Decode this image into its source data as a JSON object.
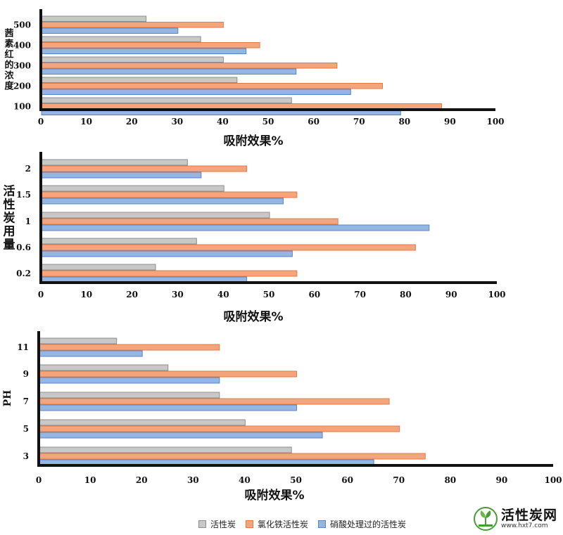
{
  "legend": [
    {
      "label": "活性炭",
      "color": "#c8c8c8"
    },
    {
      "label": "氯化铁活性炭",
      "color": "#f5a57c"
    },
    {
      "label": "硝酸处理过的活性炭",
      "color": "#95b5e2"
    }
  ],
  "colors": {
    "stroke_gray": "#8c8c8c",
    "stroke_orange": "#e07a48",
    "stroke_blue": "#5d84c2"
  },
  "logo": {
    "name": "活性炭网",
    "url": "www.hxt7.com",
    "icon": "tree-leaf-logo"
  },
  "chart_data": [
    {
      "type": "bar",
      "orientation": "horizontal",
      "title": "",
      "ylabel": "茜素红的浓度",
      "xlabel": "吸附效果%",
      "categories": [
        "500",
        "400",
        "300",
        "200",
        "100"
      ],
      "xlim": [
        0,
        100
      ],
      "xticks": [
        "0",
        "10",
        "20",
        "30",
        "40",
        "50",
        "60",
        "70",
        "80",
        "90",
        "100"
      ],
      "series": [
        {
          "name": "活性炭",
          "values": [
            23,
            35,
            40,
            43,
            55
          ]
        },
        {
          "name": "氯化铁活性炭",
          "values": [
            40,
            48,
            65,
            75,
            88
          ]
        },
        {
          "name": "硝酸处理过的活性炭",
          "values": [
            30,
            45,
            56,
            68,
            79
          ]
        }
      ]
    },
    {
      "type": "bar",
      "orientation": "horizontal",
      "title": "",
      "ylabel": "活性炭用量",
      "xlabel": "吸附效果%",
      "categories": [
        "2",
        "1.5",
        "1",
        "0.6",
        "0.2"
      ],
      "xlim": [
        0,
        100
      ],
      "xticks": [
        "0",
        "10",
        "20",
        "30",
        "40",
        "50",
        "60",
        "70",
        "80",
        "90",
        "100"
      ],
      "series": [
        {
          "name": "活性炭",
          "values": [
            32,
            40,
            50,
            34,
            25
          ]
        },
        {
          "name": "氯化铁活性炭",
          "values": [
            45,
            56,
            65,
            82,
            56
          ]
        },
        {
          "name": "硝酸处理过的活性炭",
          "values": [
            35,
            53,
            85,
            55,
            45
          ]
        }
      ]
    },
    {
      "type": "bar",
      "orientation": "horizontal",
      "title": "",
      "ylabel": "PH",
      "xlabel": "吸附效果%",
      "categories": [
        "11",
        "9",
        "7",
        "5",
        "3"
      ],
      "xlim": [
        0,
        100
      ],
      "xticks": [
        "0",
        "10",
        "20",
        "30",
        "40",
        "50",
        "60",
        "70",
        "80",
        "90",
        "100"
      ],
      "series": [
        {
          "name": "活性炭",
          "values": [
            15,
            25,
            35,
            40,
            49
          ]
        },
        {
          "name": "氯化铁活性炭",
          "values": [
            35,
            50,
            68,
            70,
            75
          ]
        },
        {
          "name": "硝酸处理过的活性炭",
          "values": [
            20,
            35,
            50,
            55,
            65
          ]
        }
      ]
    }
  ]
}
